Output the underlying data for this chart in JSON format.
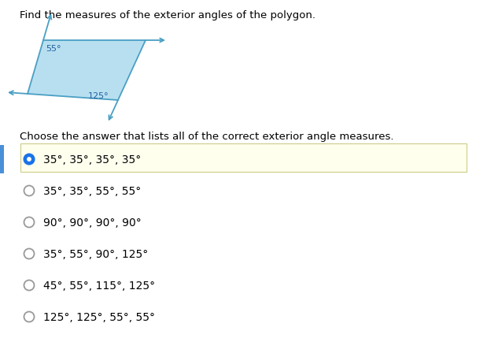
{
  "title": "Find the measures of the exterior angles of the polygon.",
  "subtitle": "Choose the answer that lists all of the correct exterior angle measures.",
  "polygon_label_55": "55°",
  "polygon_label_125": "125°",
  "options": [
    {
      "text": "35°, 35°, 35°, 35°",
      "selected": true
    },
    {
      "text": "35°, 35°, 55°, 55°",
      "selected": false
    },
    {
      "text": "90°, 90°, 90°, 90°",
      "selected": false
    },
    {
      "text": "35°, 55°, 90°, 125°",
      "selected": false
    },
    {
      "text": "45°, 55°, 115°, 125°",
      "selected": false
    },
    {
      "text": "125°, 125°, 55°, 55°",
      "selected": false
    }
  ],
  "selected_bg": "#ffffee",
  "polygon_fill": "#b8dff0",
  "polygon_edge": "#4a9fc4",
  "arrow_color": "#4a9fc4",
  "text_color": "#000000",
  "radio_selected_color": "#1a73e8",
  "radio_unselected_color": "#aaaaaa",
  "left_bar_color": "#4a90d9",
  "font_size_title": 9.5,
  "font_size_options": 10,
  "font_size_subtitle": 9.5,
  "font_size_angle": 8
}
